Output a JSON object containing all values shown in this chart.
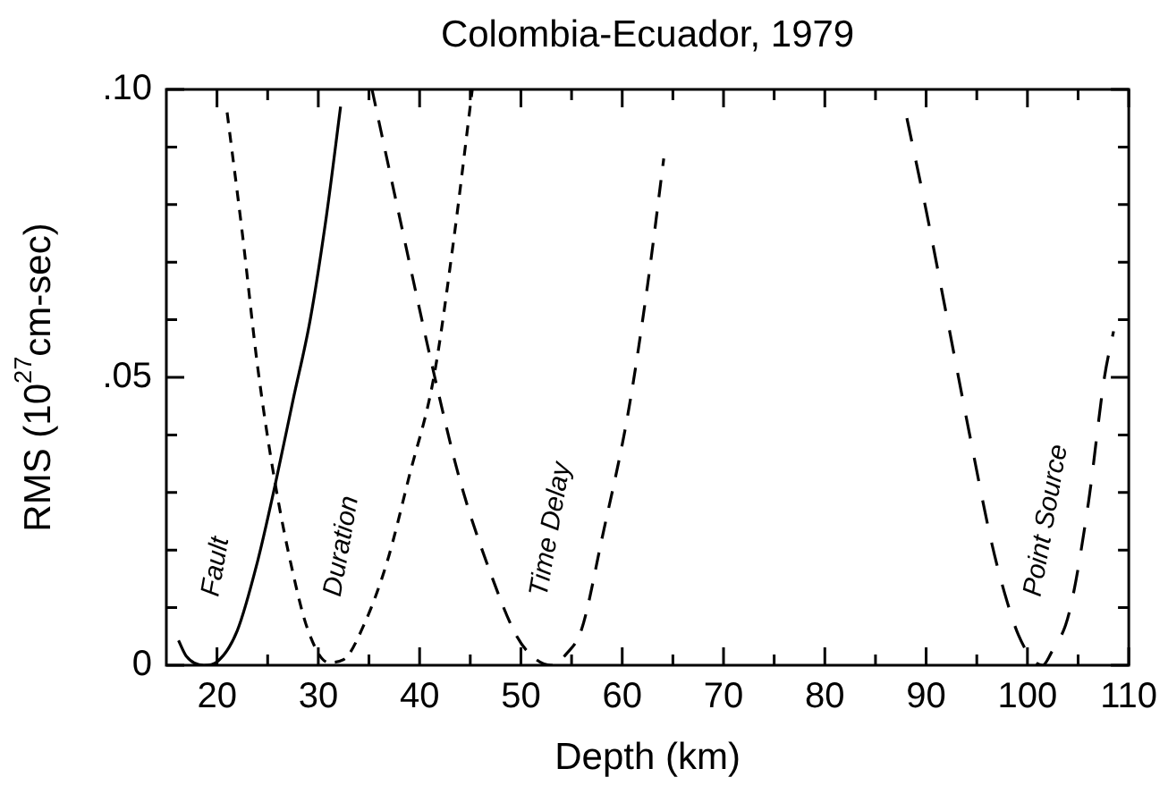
{
  "chart_data": {
    "type": "line",
    "title": "Colombia-Ecuador, 1979",
    "xlabel": "Depth (km)",
    "ylabel": "RMS (10$^{27}$cm-sec)",
    "xlim": [
      15,
      110
    ],
    "xticks": [
      {
        "value": 20,
        "label": "20"
      },
      {
        "value": 25,
        "label": null
      },
      {
        "value": 30,
        "label": "30"
      },
      {
        "value": 35,
        "label": null
      },
      {
        "value": 40,
        "label": "40"
      },
      {
        "value": 45,
        "label": null
      },
      {
        "value": 50,
        "label": "50"
      },
      {
        "value": 55,
        "label": null
      },
      {
        "value": 60,
        "label": "60"
      },
      {
        "value": 65,
        "label": null
      },
      {
        "value": 70,
        "label": "70"
      },
      {
        "value": 75,
        "label": null
      },
      {
        "value": 80,
        "label": "80"
      },
      {
        "value": 85,
        "label": null
      },
      {
        "value": 90,
        "label": "90"
      },
      {
        "value": 95,
        "label": null
      },
      {
        "value": 100,
        "label": "100"
      },
      {
        "value": 105,
        "label": null
      },
      {
        "value": 110,
        "label": "110"
      }
    ],
    "ylim": [
      0,
      0.1
    ],
    "yticks": [
      {
        "value": 0,
        "label": "0"
      },
      {
        "value": 0.01,
        "label": null
      },
      {
        "value": 0.02,
        "label": null
      },
      {
        "value": 0.03,
        "label": null
      },
      {
        "value": 0.04,
        "label": null
      },
      {
        "value": 0.05,
        "label": ".05"
      },
      {
        "value": 0.06,
        "label": null
      },
      {
        "value": 0.07,
        "label": null
      },
      {
        "value": 0.08,
        "label": null
      },
      {
        "value": 0.09,
        "label": null
      },
      {
        "value": 0.1,
        "label": ".10"
      }
    ],
    "grid": false,
    "legend": false,
    "marker": "none",
    "series": [
      {
        "name": "Fault",
        "color": "#000000",
        "line_style": "solid",
        "x": [
          16.2,
          17,
          18.7,
          20,
          22,
          24,
          25.7,
          27.5,
          29.2,
          30.8,
          32.2
        ],
        "values": [
          0.0043,
          0.0015,
          0,
          0.0006,
          0.006,
          0.018,
          0.031,
          0.046,
          0.06,
          0.078,
          0.097
        ]
      },
      {
        "name": "Duration",
        "color": "#000000",
        "line_style": "dashed",
        "x": [
          21,
          22.5,
          24,
          25.7,
          27.5,
          29,
          31,
          32.5,
          34.5,
          36.8,
          39,
          41.4,
          43.3,
          45.2
        ],
        "values": [
          0.096,
          0.075,
          0.052,
          0.032,
          0.016,
          0.006,
          0.0005,
          0.001,
          0.007,
          0.018,
          0.033,
          0.05,
          0.073,
          0.1
        ]
      },
      {
        "name": "Time Delay",
        "color": "#000000",
        "line_style": "dashed",
        "x": [
          35.3,
          38,
          41.5,
          44,
          47,
          49.6,
          51.5,
          53,
          54.5,
          56,
          58,
          60.6,
          62.5,
          64.1
        ],
        "values": [
          0.1,
          0.078,
          0.05,
          0.032,
          0.016,
          0.005,
          0.001,
          0,
          0.002,
          0.0063,
          0.022,
          0.044,
          0.066,
          0.088
        ]
      },
      {
        "name": "Point Source",
        "color": "#000000",
        "line_style": "dashed",
        "x": [
          88.1,
          90,
          92.1,
          94.3,
          96.5,
          98,
          99.1,
          100.5,
          101.5,
          102.3,
          104.1,
          106,
          107.6,
          108.5
        ],
        "values": [
          0.095,
          0.079,
          0.06,
          0.04,
          0.021,
          0.011,
          0.0053,
          0.001,
          0,
          0.002,
          0.009,
          0.028,
          0.05,
          0.058
        ]
      }
    ]
  }
}
